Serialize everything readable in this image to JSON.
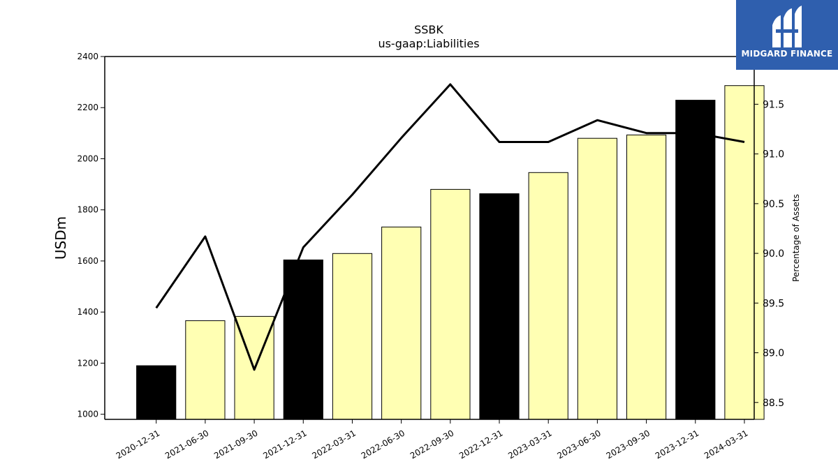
{
  "brand": {
    "name": "MIDGARD FINANCE",
    "bg_color": "#2f5fae"
  },
  "chart_data": {
    "type": "bar",
    "title": "SSBK",
    "subtitle": "us-gaap:Liabilities",
    "ylabel": "USDm",
    "y2label": "Percentage of Assets",
    "ylim": [
      980,
      2400
    ],
    "y2lim": [
      88.33,
      91.98
    ],
    "yticks": [
      1000,
      1200,
      1400,
      1600,
      1800,
      2000,
      2200,
      2400
    ],
    "y2ticks": [
      "88.5",
      "89.0",
      "89.5",
      "90.0",
      "90.5",
      "91.0",
      "91.5"
    ],
    "grid": false,
    "categories": [
      "2020-12-31",
      "2021-06-30",
      "2021-09-30",
      "2021-12-31",
      "2022-03-31",
      "2022-06-30",
      "2022-09-30",
      "2022-12-31",
      "2023-03-31",
      "2023-06-30",
      "2023-09-30",
      "2023-12-31",
      "2024-03-31"
    ],
    "series": [
      {
        "type": "bar",
        "axis": "left",
        "values": [
          1190,
          1366,
          1383,
          1604,
          1629,
          1733,
          1880,
          1863,
          1946,
          2080,
          2093,
          2229,
          2286
        ],
        "colors": [
          "#000000",
          "#ffffb3",
          "#ffffb3",
          "#000000",
          "#ffffb3",
          "#ffffb3",
          "#ffffb3",
          "#000000",
          "#ffffb3",
          "#ffffb3",
          "#ffffb3",
          "#000000",
          "#ffffb3"
        ]
      },
      {
        "type": "line",
        "axis": "right",
        "color": "#000000",
        "values": [
          89.45,
          90.17,
          88.83,
          90.06,
          90.59,
          91.16,
          91.7,
          91.12,
          91.12,
          91.34,
          91.21,
          91.21,
          91.12
        ]
      }
    ]
  }
}
